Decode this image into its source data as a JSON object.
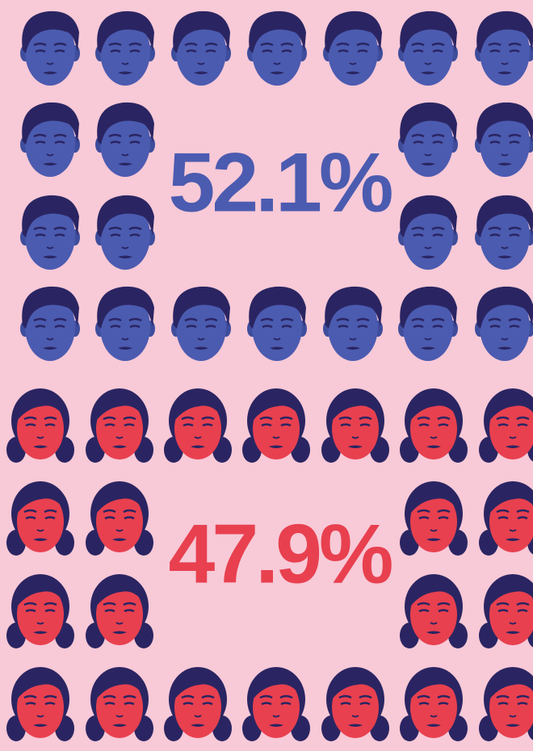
{
  "blocks": [
    {
      "label": "52.1%"
    },
    {
      "label": "47.9%"
    }
  ]
}
